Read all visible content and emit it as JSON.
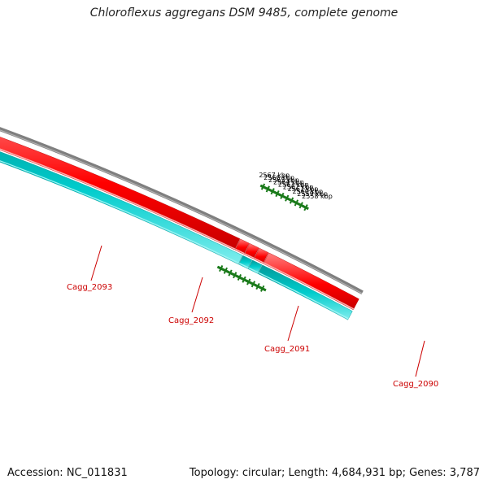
{
  "title": "Chloroflexus aggregans DSM 9485, complete genome",
  "footer": {
    "accession": "Accession: NC_011831",
    "summary": "Topology: circular; Length: 4,684,931 bp; Genes: 3,787"
  },
  "colors": {
    "backbone": "#808080",
    "forward_gene": "#ff0000",
    "reverse_gene": "#00c8c8",
    "ticks": "#1a7a1a",
    "gene_label": "#cc0000",
    "scale_label": "#000000"
  },
  "scale_labels": [
    "2567 kbp",
    "2566 kbp",
    "2565 kbp",
    "2564 kbp",
    "2563 kbp",
    "2562 kbp",
    "2561 kbp",
    "2560 kbp",
    "2559 kbp",
    "2558 kbp"
  ],
  "genes": [
    "Cagg_2093",
    "Cagg_2092",
    "Cagg_2091",
    "Cagg_2090"
  ]
}
